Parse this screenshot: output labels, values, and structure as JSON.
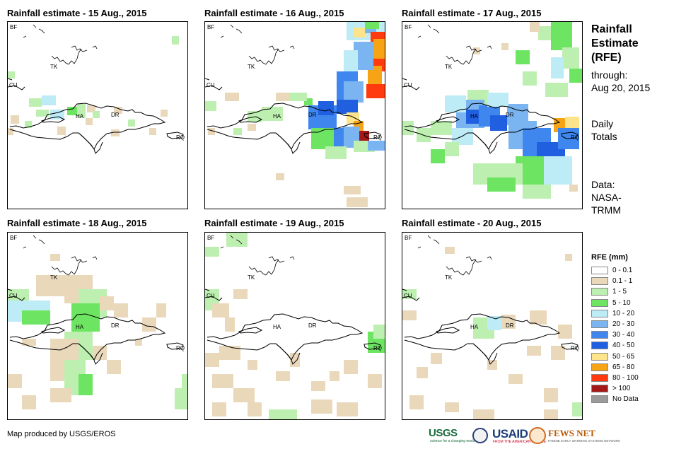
{
  "panels": [
    {
      "title": "Rainfall estimate - 15 Aug., 2015",
      "date": "2015-08-15"
    },
    {
      "title": "Rainfall estimate - 16 Aug., 2015",
      "date": "2015-08-16"
    },
    {
      "title": "Rainfall estimate - 17 Aug., 2015",
      "date": "2015-08-17"
    },
    {
      "title": "Rainfall estimate - 18 Aug., 2015",
      "date": "2015-08-18"
    },
    {
      "title": "Rainfall estimate - 19 Aug., 2015",
      "date": "2015-08-19"
    },
    {
      "title": "Rainfall estimate - 20 Aug., 2015",
      "date": "2015-08-20"
    }
  ],
  "map_labels": {
    "bf": "BF",
    "tk": "TK",
    "cu": "CU",
    "ha": "HA",
    "dr": "DR",
    "rq": "RQ"
  },
  "sidebar": {
    "title_lines": [
      "Rainfall",
      "Estimate",
      "(RFE)"
    ],
    "through_lines": [
      "through:",
      "Aug 20, 2015"
    ],
    "totals_lines": [
      "Daily",
      "Totals"
    ],
    "source_lines": [
      "Data:",
      "NASA-",
      "TRMM"
    ]
  },
  "legend": {
    "title": "RFE (mm)",
    "items": [
      {
        "label": "0 - 0.1",
        "color": "#ffffff"
      },
      {
        "label": "0.1 - 1",
        "color": "#ead8bb"
      },
      {
        "label": "1 - 5",
        "color": "#bdf0b0"
      },
      {
        "label": "5 - 10",
        "color": "#6ee562"
      },
      {
        "label": "10 - 20",
        "color": "#bdebf6"
      },
      {
        "label": "20 - 30",
        "color": "#7ab5f2"
      },
      {
        "label": "30 - 40",
        "color": "#3f87ee"
      },
      {
        "label": "40 - 50",
        "color": "#1f5fe0"
      },
      {
        "label": "50 - 65",
        "color": "#fde38a"
      },
      {
        "label": "65 - 80",
        "color": "#f6a316"
      },
      {
        "label": "80 - 100",
        "color": "#ff3a0f"
      },
      {
        "label": "> 100",
        "color": "#a51818"
      },
      {
        "label": "No Data",
        "color": "#9b9b9b"
      }
    ]
  },
  "footer": {
    "credit": "Map produced by USGS/EROS",
    "logos": {
      "usgs": "USGS",
      "usgs_tagline": "science for a changing world",
      "usaid": "USAID",
      "usaid_tagline": "FROM THE AMERICAN PEOPLE",
      "fews": "FEWS NET",
      "fews_tagline": "FAMINE EARLY WARNING SYSTEMS NETWORK"
    }
  }
}
